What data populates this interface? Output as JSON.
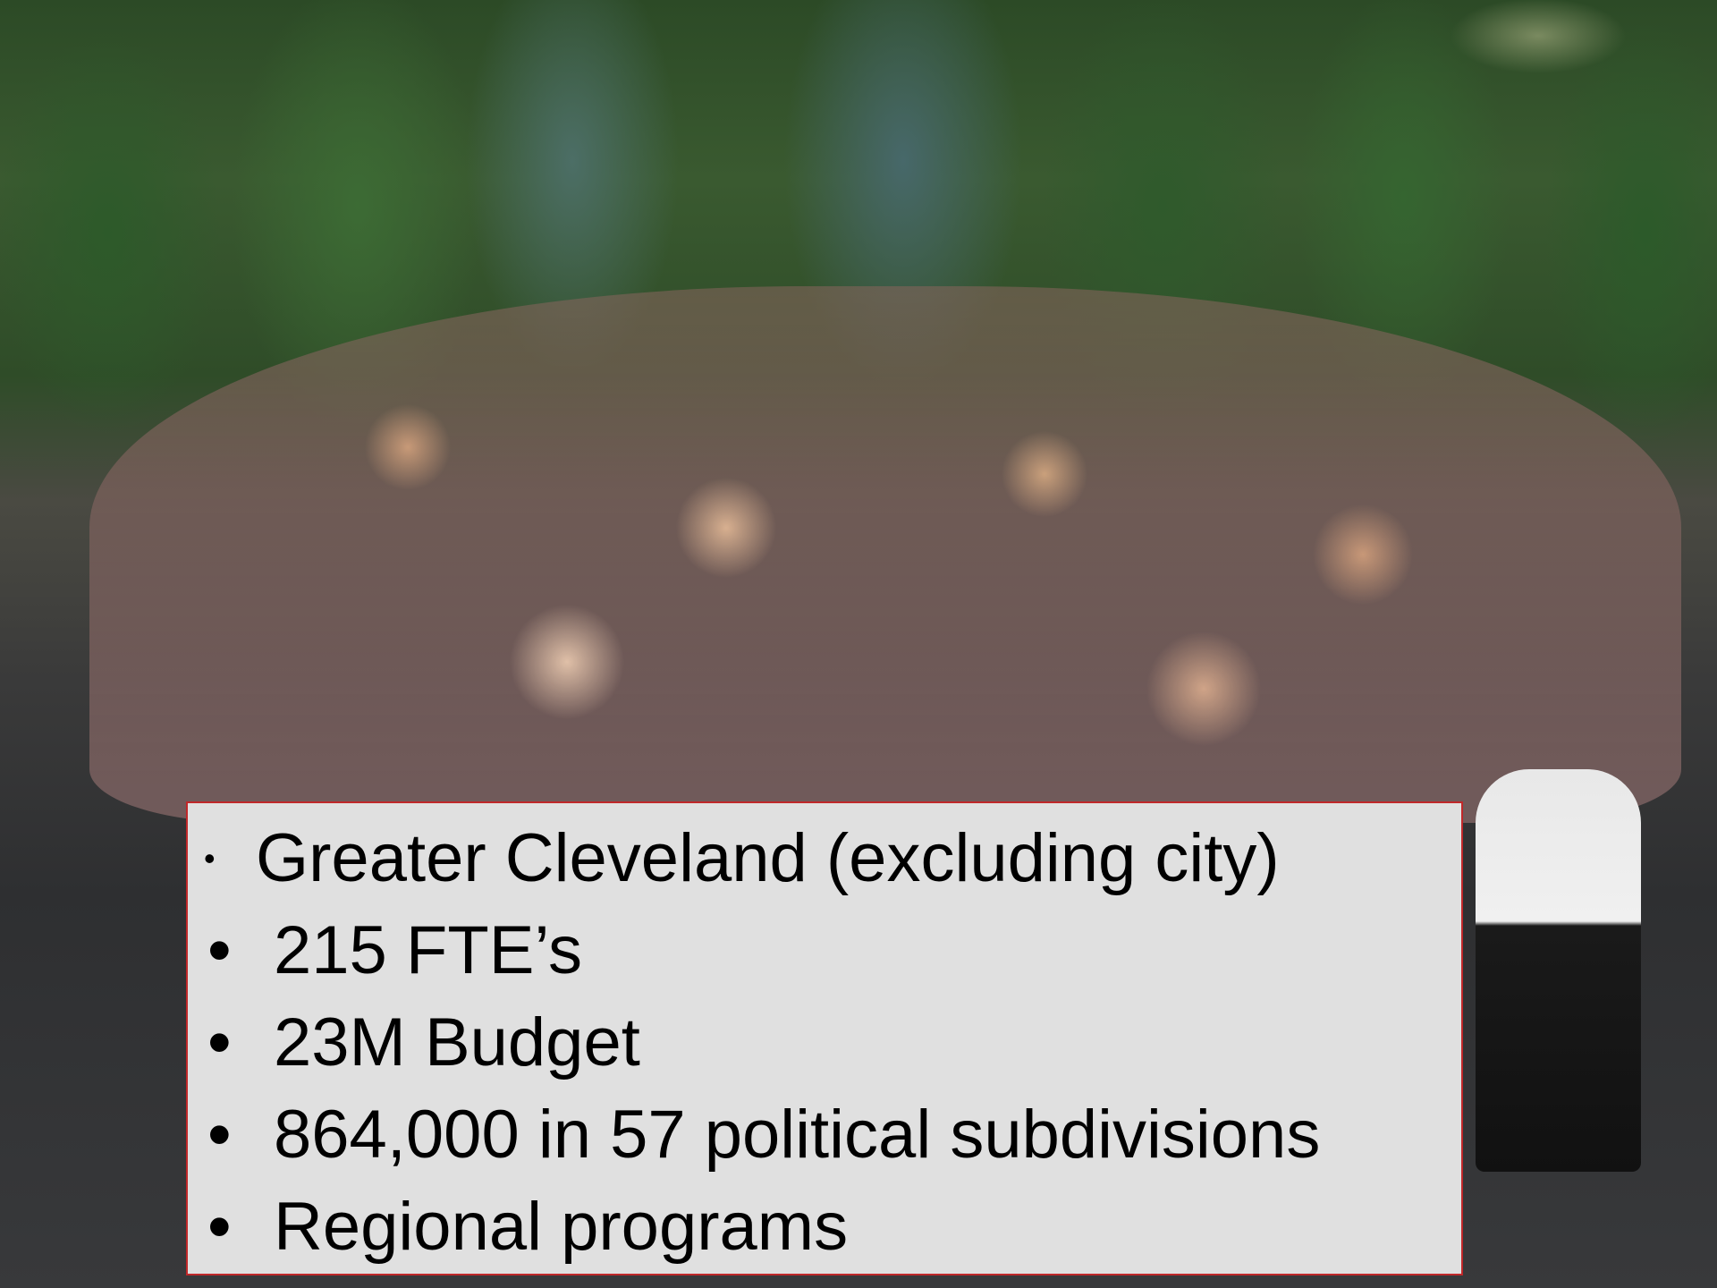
{
  "bullets": [
    "Greater Cleveland (excluding city)",
    "215 FTE’s",
    "23M Budget",
    "864,000 in 57 political subdivisions",
    "Regional programs"
  ]
}
